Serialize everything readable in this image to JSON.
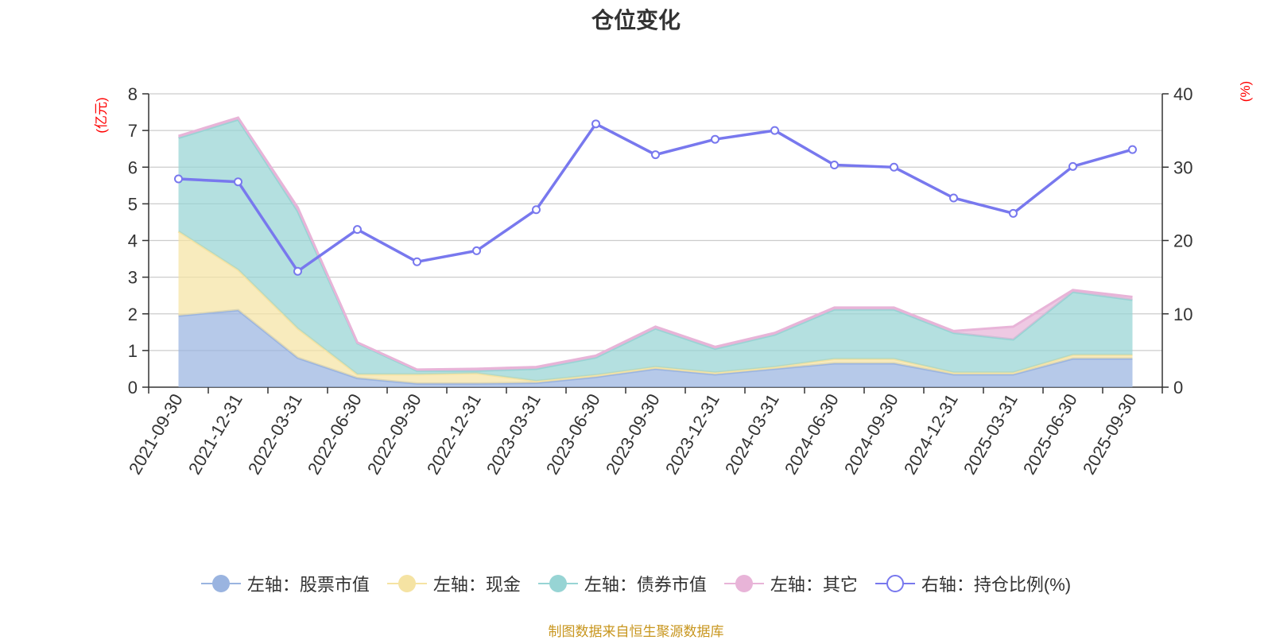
{
  "chart_data": {
    "type": "area",
    "title": "仓位变化",
    "categories": [
      "2021-09-30",
      "2021-12-31",
      "2022-03-31",
      "2022-06-30",
      "2022-09-30",
      "2022-12-31",
      "2023-03-31",
      "2023-06-30",
      "2023-09-30",
      "2023-12-31",
      "2024-03-31",
      "2024-06-30",
      "2024-09-30",
      "2024-12-31",
      "2025-03-31",
      "2025-06-30",
      "2025-09-30"
    ],
    "left_axis": {
      "label": "(亿元)",
      "ylim": [
        0,
        8
      ],
      "ticks": [
        "0",
        "1",
        "2",
        "3",
        "4",
        "5",
        "6",
        "7",
        "8"
      ]
    },
    "right_axis": {
      "label": "(%)",
      "ylim": [
        0,
        40
      ],
      "ticks": [
        "0",
        "10",
        "20",
        "30",
        "40"
      ]
    },
    "grid": true,
    "legend_position": "bottom",
    "series": [
      {
        "name": "左轴：股票市值",
        "axis": "left",
        "kind": "stacked-area",
        "color": "#9ab4e0",
        "values": [
          1.95,
          2.1,
          0.8,
          0.25,
          0.1,
          0.1,
          0.12,
          0.28,
          0.5,
          0.35,
          0.5,
          0.65,
          0.65,
          0.35,
          0.35,
          0.78,
          0.78
        ]
      },
      {
        "name": "左轴：现金",
        "axis": "left",
        "kind": "stacked-area",
        "color": "#f5e3a3",
        "values": [
          2.3,
          1.1,
          0.8,
          0.1,
          0.25,
          0.28,
          0.05,
          0.05,
          0.05,
          0.05,
          0.05,
          0.12,
          0.12,
          0.05,
          0.05,
          0.1,
          0.1
        ]
      },
      {
        "name": "左轴：债券市值",
        "axis": "left",
        "kind": "stacked-area",
        "color": "#97d4d4",
        "values": [
          2.55,
          4.1,
          3.2,
          0.85,
          0.1,
          0.07,
          0.33,
          0.48,
          1.05,
          0.65,
          0.88,
          1.35,
          1.35,
          1.08,
          0.9,
          1.72,
          1.5
        ]
      },
      {
        "name": "左轴：其它",
        "axis": "left",
        "kind": "stacked-area",
        "color": "#e8b4d8",
        "values": [
          0.05,
          0.05,
          0.1,
          0.02,
          0.03,
          0.05,
          0.05,
          0.05,
          0.05,
          0.05,
          0.05,
          0.05,
          0.05,
          0.05,
          0.35,
          0.05,
          0.08
        ]
      },
      {
        "name": "右轴：持仓比例(%)",
        "axis": "right",
        "kind": "line",
        "color": "#7878ee",
        "values": [
          28.4,
          28.0,
          15.8,
          21.5,
          17.1,
          18.6,
          24.2,
          35.9,
          31.7,
          33.8,
          35.0,
          30.3,
          30.0,
          25.8,
          23.7,
          30.1,
          32.4
        ]
      }
    ]
  },
  "source_note": "制图数据来自恒生聚源数据库"
}
